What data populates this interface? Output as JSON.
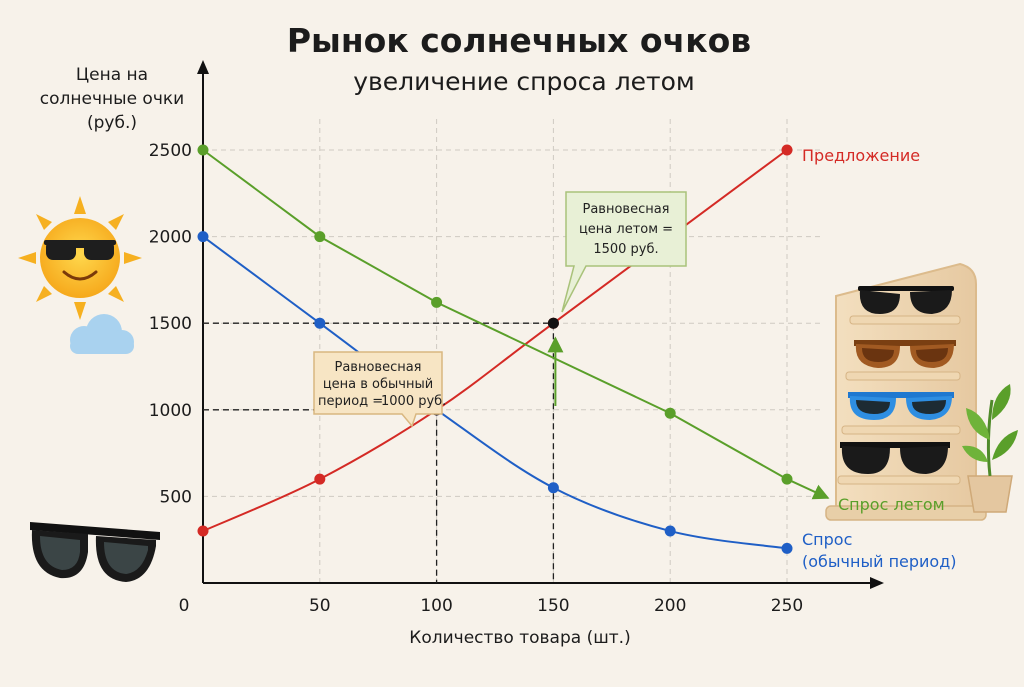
{
  "colors": {
    "supply": "#d42a25",
    "demand_normal": "#1f5fc6",
    "demand_summer": "#5a9f2a",
    "background": "#f7f2ea"
  },
  "chart_data": {
    "type": "line",
    "title": "Рынок солнечных очков",
    "subtitle": "увеличение спроса летом",
    "ylabel_lines": [
      "Цена на",
      "солнечные очки",
      "(руб.)"
    ],
    "xlabel": "Количество товара (шт.)",
    "x_ticks": [
      0,
      50,
      100,
      150,
      200,
      250
    ],
    "y_ticks": [
      500,
      1000,
      1500,
      2000,
      2500
    ],
    "xlim": [
      0,
      275
    ],
    "ylim": [
      0,
      2700
    ],
    "grid": true,
    "series": [
      {
        "key": "supply",
        "name": "Предложение",
        "x": [
          0,
          50,
          100,
          150,
          250
        ],
        "y": [
          300,
          600,
          1000,
          1500,
          2500
        ]
      },
      {
        "key": "demand_normal",
        "name": "Спрос",
        "name_line2": "(обычный период)",
        "x": [
          0,
          50,
          100,
          150,
          200,
          250
        ],
        "y": [
          2000,
          1500,
          1000,
          550,
          300,
          200
        ]
      },
      {
        "key": "demand_summer",
        "name": "Спрос летом",
        "x": [
          0,
          50,
          100,
          200,
          250
        ],
        "y": [
          2500,
          2000,
          1620,
          980,
          600
        ]
      }
    ],
    "annotations": [
      {
        "key": "normal",
        "lines": [
          "Равновесная",
          "цена в обычный",
          "период = "
        ],
        "value": "1000 руб.",
        "x": 100,
        "y": 1000
      },
      {
        "key": "summer",
        "lines": [
          "Равновесная",
          "цена летом ="
        ],
        "value": "1500 руб.",
        "x": 150,
        "y": 1500
      }
    ]
  },
  "icons": [
    "sun-with-sunglasses-icon",
    "cloud-icon",
    "sunglasses-icon",
    "sunglasses-display-stand-icon",
    "potted-plant-icon"
  ]
}
